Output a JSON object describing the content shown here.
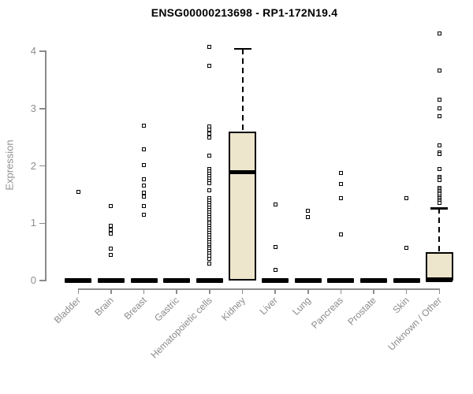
{
  "title": "ENSG00000213698 - RP1-172N19.4",
  "chart_data": {
    "type": "boxplot",
    "title": "ENSG00000213698 - RP1-172N19.4",
    "xlabel": "",
    "ylabel": "Expression",
    "ylim": [
      0,
      4.4
    ],
    "yticks": [
      0,
      1,
      2,
      3,
      4
    ],
    "grid": false,
    "legend": "none",
    "box_fill_color": "#EDE6CD",
    "box_border_color": "#000000",
    "axis_color": "#8B8B8B",
    "tick_label_color": "#8A8A8A",
    "outlier_marker": "open-square",
    "categories": [
      "Bladder",
      "Brain",
      "Breast",
      "Gastric",
      "Hematopoietic cells",
      "Kidney",
      "Liver",
      "Lung",
      "Pancreas",
      "Prostate",
      "Skin",
      "Unknown / Other"
    ],
    "series": [
      {
        "name": "Bladder",
        "q1": 0,
        "median": 0,
        "q3": 0,
        "whisker_low": 0,
        "whisker_high": 0,
        "outliers": [
          1.54
        ]
      },
      {
        "name": "Brain",
        "q1": 0,
        "median": 0,
        "q3": 0,
        "whisker_low": 0,
        "whisker_high": 0,
        "outliers": [
          1.3,
          0.95,
          0.89,
          0.82,
          0.56,
          0.45
        ]
      },
      {
        "name": "Breast",
        "q1": 0,
        "median": 0,
        "q3": 0,
        "whisker_low": 0,
        "whisker_high": 0,
        "outliers": [
          2.7,
          2.29,
          2.02,
          1.77,
          1.65,
          1.53,
          1.47,
          1.3,
          1.15
        ]
      },
      {
        "name": "Gastric",
        "q1": 0,
        "median": 0,
        "q3": 0,
        "whisker_low": 0,
        "whisker_high": 0,
        "outliers": []
      },
      {
        "name": "Hematopoietic cells",
        "q1": 0,
        "median": 0,
        "q3": 0,
        "whisker_low": 0,
        "whisker_high": 0,
        "outliers": [
          4.07,
          3.75,
          2.69,
          2.63,
          2.56,
          2.49,
          2.18,
          1.94,
          1.9,
          1.86,
          1.82,
          1.78,
          1.74,
          1.7,
          1.57,
          1.43,
          1.39,
          1.35,
          1.31,
          1.27,
          1.23,
          1.19,
          1.15,
          1.11,
          1.07,
          1.03,
          0.99,
          0.95,
          0.91,
          0.87,
          0.83,
          0.79,
          0.75,
          0.71,
          0.67,
          0.63,
          0.59,
          0.55,
          0.51,
          0.47,
          0.43,
          0.38,
          0.29
        ]
      },
      {
        "name": "Kidney",
        "q1": 0,
        "median": 1.89,
        "q3": 2.6,
        "whisker_low": 0,
        "whisker_high": 4.04,
        "outliers": []
      },
      {
        "name": "Liver",
        "q1": 0,
        "median": 0,
        "q3": 0,
        "whisker_low": 0,
        "whisker_high": 0,
        "outliers": [
          1.32,
          0.59,
          0.18
        ]
      },
      {
        "name": "Lung",
        "q1": 0,
        "median": 0,
        "q3": 0,
        "whisker_low": 0,
        "whisker_high": 0,
        "outliers": [
          1.21,
          1.1
        ]
      },
      {
        "name": "Pancreas",
        "q1": 0,
        "median": 0,
        "q3": 0,
        "whisker_low": 0,
        "whisker_high": 0,
        "outliers": [
          1.88,
          1.69,
          1.43,
          0.81
        ]
      },
      {
        "name": "Prostate",
        "q1": 0,
        "median": 0,
        "q3": 0,
        "whisker_low": 0,
        "whisker_high": 0,
        "outliers": []
      },
      {
        "name": "Skin",
        "q1": 0,
        "median": 0,
        "q3": 0,
        "whisker_low": 0,
        "whisker_high": 0,
        "outliers": [
          1.43,
          0.57
        ]
      },
      {
        "name": "Unknown / Other",
        "q1": 0,
        "median": 0,
        "q3": 0.49,
        "whisker_low": 0,
        "whisker_high": 1.26,
        "outliers": [
          4.31,
          3.67,
          3.15,
          3.01,
          2.86,
          2.36,
          2.23,
          2.21,
          1.94,
          1.81,
          1.78,
          1.75,
          1.62,
          1.59,
          1.56,
          1.53,
          1.5,
          1.47,
          1.44,
          1.41,
          1.38,
          1.35
        ]
      }
    ]
  }
}
